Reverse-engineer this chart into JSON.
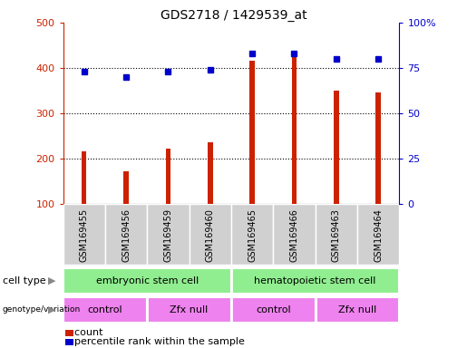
{
  "title": "GDS2718 / 1429539_at",
  "samples": [
    "GSM169455",
    "GSM169456",
    "GSM169459",
    "GSM169460",
    "GSM169465",
    "GSM169466",
    "GSM169463",
    "GSM169464"
  ],
  "counts": [
    215,
    172,
    222,
    235,
    415,
    425,
    350,
    345
  ],
  "percentile_ranks_pct": [
    73,
    70,
    73,
    74,
    83,
    83,
    80,
    80
  ],
  "ylim_left": [
    100,
    500
  ],
  "ylim_right": [
    0,
    100
  ],
  "yticks_left": [
    100,
    200,
    300,
    400,
    500
  ],
  "ytick_labels_left": [
    "100",
    "200",
    "300",
    "400",
    "500"
  ],
  "yticks_right": [
    0,
    25,
    50,
    75,
    100
  ],
  "ytick_labels_right": [
    "0",
    "25",
    "50",
    "75",
    "100%"
  ],
  "bar_color": "#cc2200",
  "dot_color": "#0000cc",
  "background_color": "#ffffff",
  "plot_bg_color": "#ffffff",
  "xtick_bg_color": "#d0d0d0",
  "cell_type_labels": [
    "embryonic stem cell",
    "hematopoietic stem cell"
  ],
  "cell_type_ranges": [
    [
      0,
      4
    ],
    [
      4,
      8
    ]
  ],
  "cell_type_color": "#90ee90",
  "cell_type_border_color": "#ffffff",
  "genotype_labels": [
    "control",
    "Zfx null",
    "control",
    "Zfx null"
  ],
  "genotype_ranges": [
    [
      0,
      2
    ],
    [
      2,
      4
    ],
    [
      4,
      6
    ],
    [
      6,
      8
    ]
  ],
  "genotype_color": "#ee82ee",
  "label_fontsize": 8,
  "title_fontsize": 10,
  "tick_fontsize": 8,
  "sample_fontsize": 7,
  "bar_width": 0.12
}
